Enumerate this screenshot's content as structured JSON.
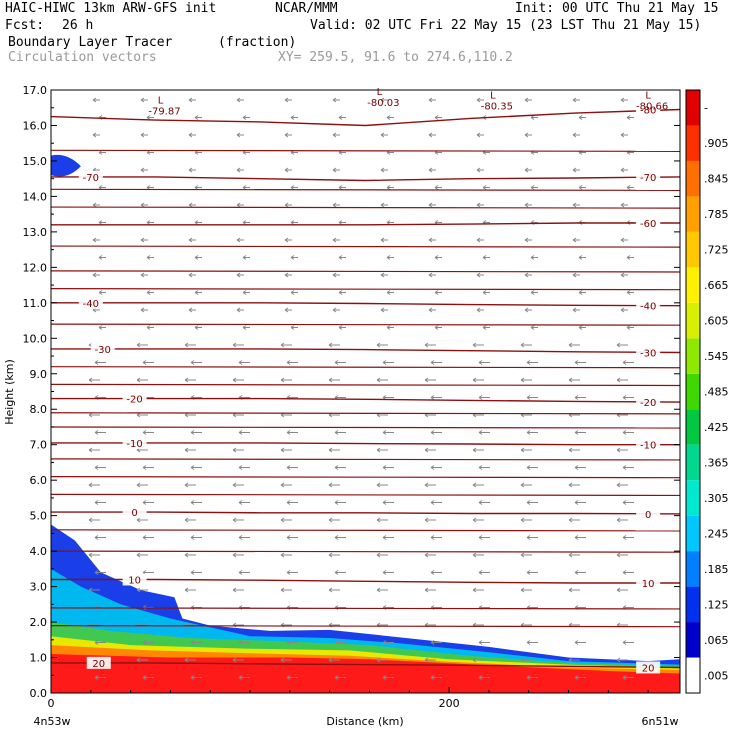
{
  "header": {
    "model": "HAIC-HIWC 13km ARW-GFS init",
    "org": "NCAR/MMM",
    "init": "Init: 00 UTC Thu 21 May 15",
    "fcst_label": "Fcst:",
    "fcst_value": "26 h",
    "valid": "Valid: 02 UTC Fri 22 May 15 (23 LST Thu 21 May 15)",
    "field": "Boundary Layer Tracer",
    "field_unit": "(fraction)",
    "vectors": "Circulation vectors",
    "xy": "XY= 259.5, 91.6 to 274.6,110.2"
  },
  "chart_data": {
    "type": "heatmap",
    "xlabel": "Distance (km)",
    "ylabel": "Height (km)",
    "xlim": [
      0,
      316
    ],
    "ylim": [
      0,
      17
    ],
    "x_ticks": [
      0,
      200
    ],
    "y_ticks": [
      "0.0",
      "1.0",
      "2.0",
      "3.0",
      "4.0",
      "5.0",
      "6.0",
      "7.0",
      "8.0",
      "9.0",
      "10.0",
      "11.0",
      "12.0",
      "13.0",
      "14.0",
      "15.0",
      "16.0",
      "17.0"
    ],
    "x_end_labels": {
      "left": "4n53w",
      "right": "6n51w"
    },
    "colorbar": {
      "labels": [
        ".005",
        ".065",
        ".125",
        ".185",
        ".245",
        ".305",
        ".365",
        ".425",
        ".485",
        ".545",
        ".605",
        ".665",
        ".725",
        ".785",
        ".845",
        ".905",
        "-"
      ],
      "colors": [
        "#ffffff",
        "#0000cc",
        "#0030f0",
        "#0080ff",
        "#00c8ff",
        "#00e8d0",
        "#00d890",
        "#00c840",
        "#40d800",
        "#90e800",
        "#d8f000",
        "#fff000",
        "#ffc800",
        "#ffa000",
        "#ff7000",
        "#ff3000",
        "#e00000"
      ]
    },
    "tracer_regions": [
      {
        "level": "blue",
        "color": "#1a3fe8",
        "points": [
          [
            0,
            4.75
          ],
          [
            12,
            4.3
          ],
          [
            25,
            3.4
          ],
          [
            45,
            2.9
          ],
          [
            62,
            2.7
          ],
          [
            66,
            2.1
          ],
          [
            80,
            1.9
          ],
          [
            110,
            1.75
          ],
          [
            140,
            1.78
          ],
          [
            170,
            1.6
          ],
          [
            220,
            1.3
          ],
          [
            260,
            1.0
          ],
          [
            300,
            0.9
          ],
          [
            316,
            0.95
          ],
          [
            316,
            0
          ],
          [
            0,
            0
          ]
        ]
      },
      {
        "level": "cyan",
        "color": "#00b8f0",
        "points": [
          [
            0,
            3.5
          ],
          [
            15,
            3.0
          ],
          [
            35,
            2.5
          ],
          [
            60,
            2.1
          ],
          [
            100,
            1.6
          ],
          [
            140,
            1.55
          ],
          [
            175,
            1.4
          ],
          [
            220,
            1.15
          ],
          [
            260,
            0.9
          ],
          [
            316,
            0.8
          ],
          [
            316,
            0
          ],
          [
            0,
            0
          ]
        ]
      },
      {
        "level": "green",
        "color": "#40c850",
        "points": [
          [
            0,
            2.0
          ],
          [
            30,
            1.75
          ],
          [
            70,
            1.55
          ],
          [
            120,
            1.45
          ],
          [
            160,
            1.35
          ],
          [
            210,
            1.05
          ],
          [
            260,
            0.85
          ],
          [
            316,
            0.75
          ],
          [
            316,
            0
          ],
          [
            0,
            0
          ]
        ]
      },
      {
        "level": "yellow",
        "color": "#e8e800",
        "points": [
          [
            0,
            1.6
          ],
          [
            40,
            1.35
          ],
          [
            100,
            1.25
          ],
          [
            150,
            1.2
          ],
          [
            200,
            0.95
          ],
          [
            260,
            0.8
          ],
          [
            316,
            0.7
          ],
          [
            316,
            0
          ],
          [
            0,
            0
          ]
        ]
      },
      {
        "level": "orange",
        "color": "#ff8800",
        "points": [
          [
            0,
            1.35
          ],
          [
            50,
            1.2
          ],
          [
            100,
            1.12
          ],
          [
            150,
            1.05
          ],
          [
            200,
            0.88
          ],
          [
            260,
            0.72
          ],
          [
            316,
            0.65
          ],
          [
            316,
            0
          ],
          [
            0,
            0
          ]
        ]
      },
      {
        "level": "red",
        "color": "#ff1a1a",
        "points": [
          [
            0,
            1.1
          ],
          [
            60,
            1.0
          ],
          [
            120,
            1.0
          ],
          [
            160,
            0.95
          ],
          [
            220,
            0.78
          ],
          [
            280,
            0.62
          ],
          [
            316,
            0.55
          ],
          [
            316,
            0
          ],
          [
            0,
            0
          ]
        ]
      }
    ],
    "temperature_contours": [
      {
        "label": "20",
        "y": [
          0.85,
          0.85,
          0.82,
          0.8,
          0.78,
          0.75,
          0.72
        ],
        "label_x": [
          24,
          300
        ]
      },
      {
        "label": "10",
        "y": [
          3.2,
          3.2,
          3.18,
          3.15,
          3.12,
          3.1,
          3.1
        ],
        "label_x": [
          42,
          300
        ]
      },
      {
        "label": "0",
        "y": [
          5.1,
          5.1,
          5.08,
          5.08,
          5.06,
          5.06,
          5.05
        ],
        "label_x": [
          42,
          300
        ]
      },
      {
        "label": "-10",
        "y": [
          7.05,
          7.05,
          7.05,
          7.03,
          7.02,
          7.0,
          7.0
        ],
        "label_x": [
          42,
          300
        ]
      },
      {
        "label": "-20",
        "y": [
          8.3,
          8.3,
          8.3,
          8.28,
          8.25,
          8.22,
          8.2
        ],
        "label_x": [
          42,
          300
        ]
      },
      {
        "label": "-30",
        "y": [
          9.7,
          9.7,
          9.7,
          9.68,
          9.65,
          9.62,
          9.6
        ],
        "label_x": [
          26,
          300
        ]
      },
      {
        "label": "-40",
        "y": [
          11.0,
          11.0,
          11.0,
          10.98,
          10.95,
          10.93,
          10.92
        ],
        "label_x": [
          20,
          300
        ]
      },
      {
        "label": "-60",
        "y": [
          13.2,
          13.2,
          13.2,
          13.2,
          13.22,
          13.25,
          13.25
        ],
        "label_x": [
          300,
          300
        ]
      },
      {
        "label": "-70",
        "y": [
          14.55,
          14.55,
          14.5,
          14.45,
          14.5,
          14.52,
          14.55
        ],
        "label_x": [
          20,
          300
        ]
      },
      {
        "label": "-80",
        "y": [
          16.25,
          16.15,
          16.1,
          16.0,
          16.2,
          16.35,
          16.45
        ],
        "label_x": [
          300,
          300
        ]
      }
    ],
    "extra_contour_levels": [
      1.9,
      2.4,
      4.0,
      4.6,
      5.6,
      6.1,
      6.6,
      7.5,
      7.9,
      8.7,
      9.2,
      10.4,
      11.4,
      11.9,
      12.6,
      13.7,
      14.2,
      15.3
    ],
    "minima": [
      {
        "symbol": "L",
        "value": "-79.87",
        "x": 55,
        "y": 16.5
      },
      {
        "symbol": "L",
        "value": "-80.03",
        "x": 165,
        "y": 16.75
      },
      {
        "symbol": "L",
        "value": "-80.35",
        "x": 222,
        "y": 16.65
      },
      {
        "symbol": "L",
        "value": "-80.66",
        "x": 300,
        "y": 16.65
      }
    ]
  }
}
